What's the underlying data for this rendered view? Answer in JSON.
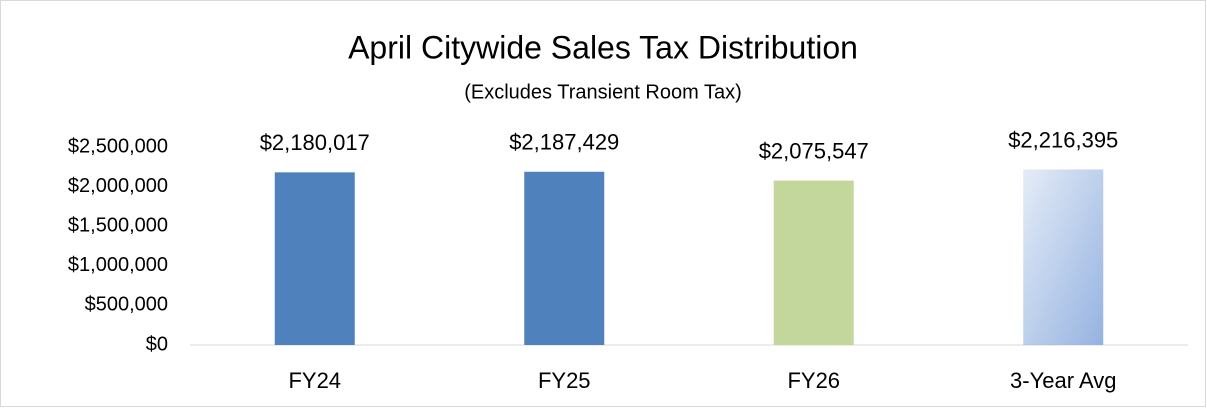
{
  "chart_data": {
    "type": "bar",
    "title": "April Citywide Sales Tax Distribution",
    "subtitle": "(Excludes Transient Room Tax)",
    "categories": [
      "FY24",
      "FY25",
      "FY26",
      "3-Year Avg"
    ],
    "values": [
      2180017,
      2187429,
      2075547,
      2216395
    ],
    "value_labels": [
      "$2,180,017",
      "$2,187,429",
      "$2,075,547",
      "$2,216,395"
    ],
    "colors": [
      "#4f81bd",
      "#4f81bd",
      "#c3d69b",
      "#95b3e0"
    ],
    "gradient": [
      false,
      false,
      false,
      true
    ],
    "ylim": [
      0,
      2500000
    ],
    "yticks": [
      {
        "value": 0,
        "label": "$0"
      },
      {
        "value": 500000,
        "label": "$500,000"
      },
      {
        "value": 1000000,
        "label": "$1,000,000"
      },
      {
        "value": 1500000,
        "label": "$1,500,000"
      },
      {
        "value": 2000000,
        "label": "$2,000,000"
      },
      {
        "value": 2500000,
        "label": "$2,500,000"
      }
    ],
    "grid": false
  }
}
